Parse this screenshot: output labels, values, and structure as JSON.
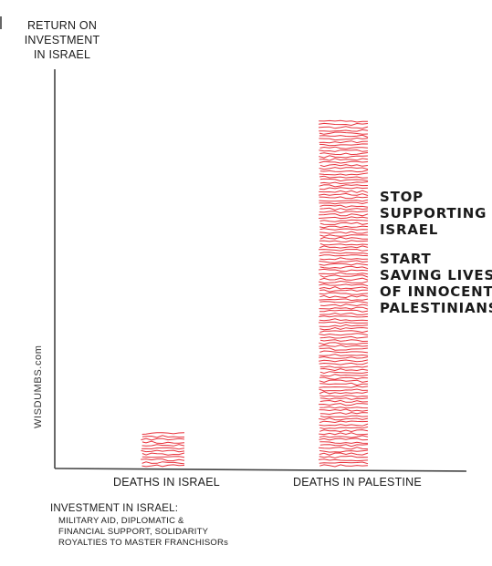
{
  "chart_data": {
    "type": "bar",
    "ylabel": [
      "RETURN ON",
      "INVESTMENT",
      "IN ISRAEL"
    ],
    "categories": [
      "DEATHS IN ISRAEL",
      "DEATHS IN PALESTINE"
    ],
    "values": [
      10,
      100
    ],
    "ylim": [
      0,
      115
    ],
    "grid": false,
    "bar_color": "#e8323c",
    "annotations": [
      [
        "STOP",
        "SUPPORTING",
        "ISRAEL"
      ],
      [
        "START",
        "SAVING LIVES",
        "OF INNOCENT",
        "PALESTINIANS"
      ]
    ],
    "footnote": {
      "title": "INVESTMENT IN ISRAEL:",
      "lines": [
        "MILITARY AID, DIPLOMATIC &",
        "FINANCIAL SUPPORT, SOLIDARITY",
        "ROYALTIES TO MASTER FRANCHISORs"
      ]
    }
  },
  "watermark": "WISDUMBS.com"
}
